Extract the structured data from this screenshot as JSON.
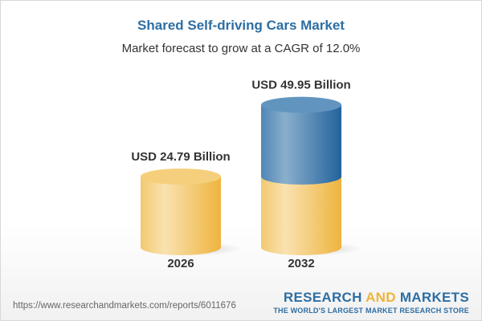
{
  "title": "Shared Self-driving Cars Market",
  "subtitle": "Market forecast to grow at a CAGR of 12.0%",
  "chart_data": {
    "type": "bar",
    "style": "3d-cylinder",
    "categories": [
      "2026",
      "2032"
    ],
    "values": [
      24.79,
      49.95
    ],
    "data_labels": [
      "USD 24.79 Billion",
      "USD 49.95 Billion"
    ],
    "unit": "USD Billion",
    "colors": {
      "base": "#f2c15a",
      "growth": "#2f6fa3"
    }
  },
  "footer": {
    "url": "https://www.researchandmarkets.com/reports/6011676",
    "logo_part1": "RESEARCH ",
    "logo_part2": "AND",
    "logo_part3": " MARKETS",
    "tagline": "THE WORLD'S LARGEST MARKET RESEARCH STORE"
  }
}
